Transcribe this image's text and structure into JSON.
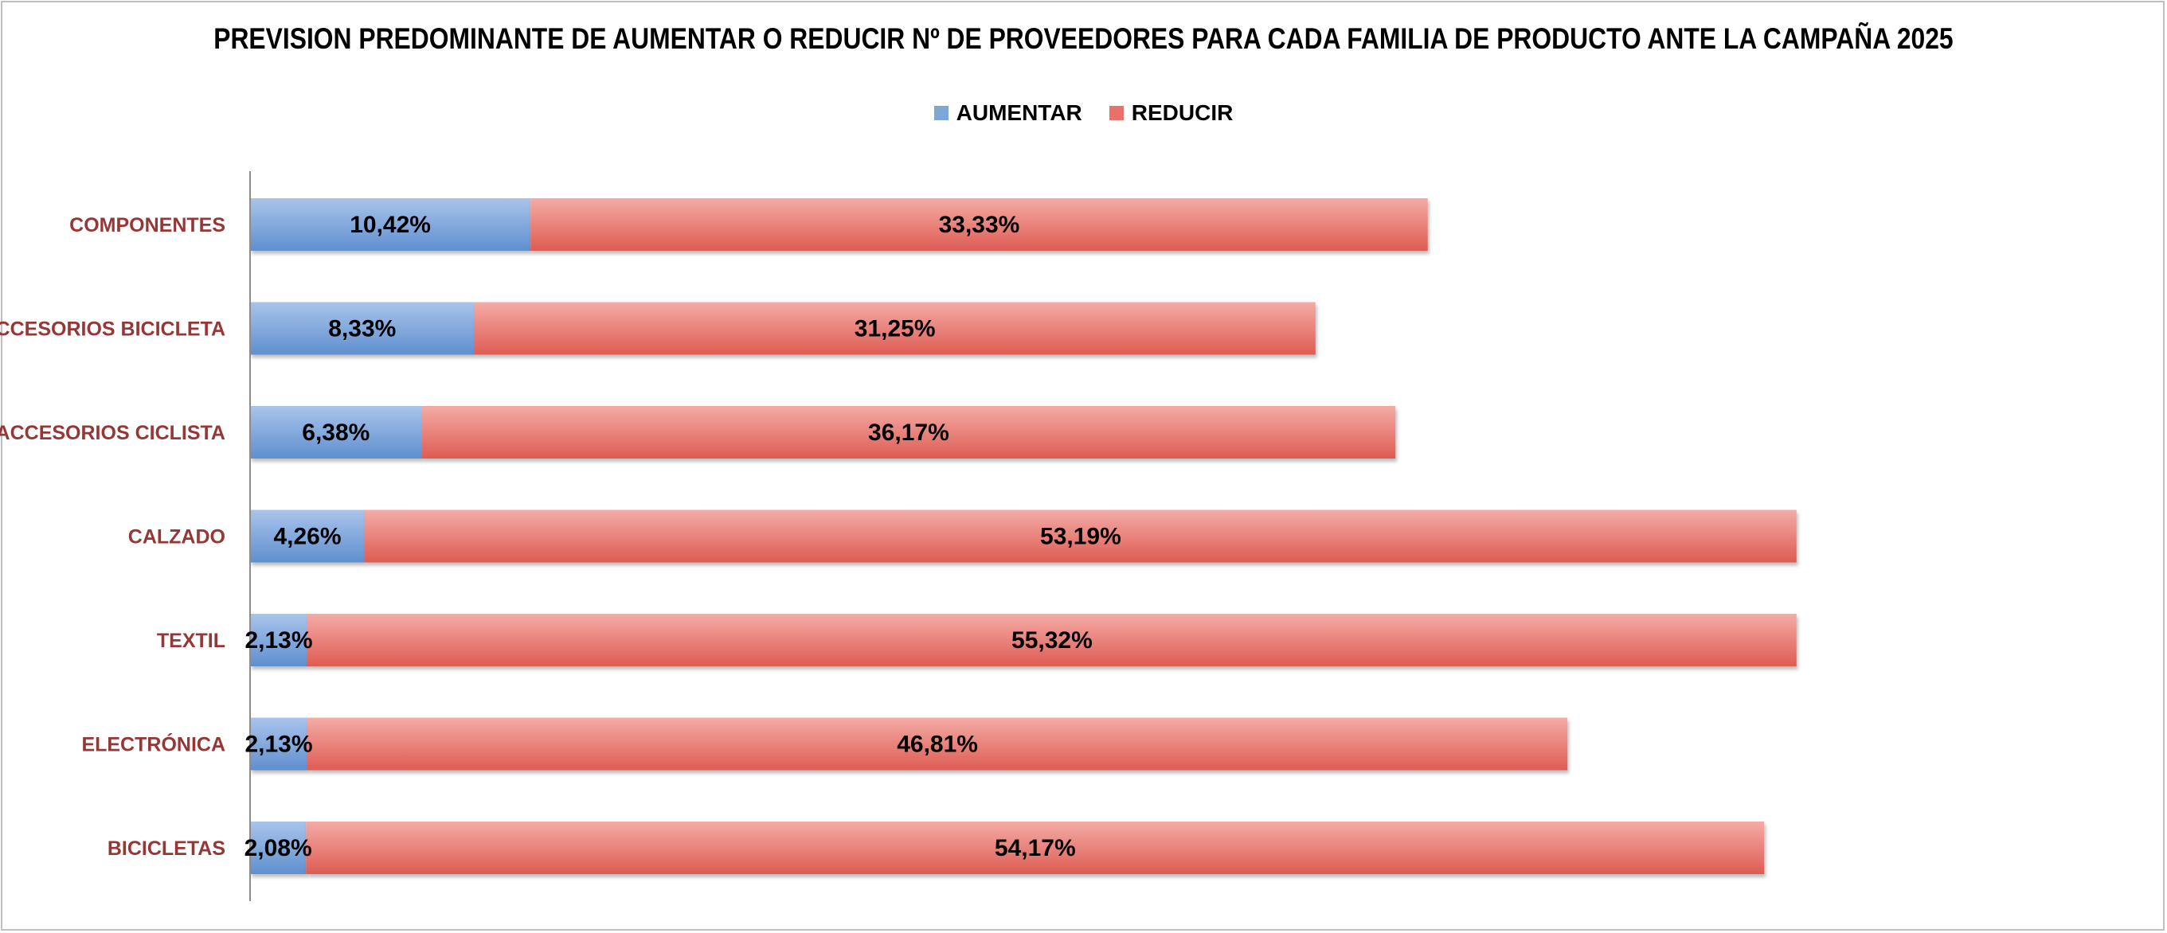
{
  "chart_data": {
    "type": "bar",
    "orientation": "horizontal",
    "stacked": true,
    "title": "PREVISION PREDOMINANTE DE AUMENTAR O REDUCIR Nº DE PROVEEDORES PARA CADA FAMILIA DE PRODUCTO ANTE LA CAMPAÑA 2025",
    "categories": [
      "COMPONENTES",
      "ACCESORIOS BICICLETA",
      "ACCESORIOS CICLISTA",
      "CALZADO",
      "TEXTIL",
      "ELECTRÓNICA",
      "BICICLETAS"
    ],
    "series": [
      {
        "name": "AUMENTAR",
        "color": "#7ea7d9",
        "values": [
          10.42,
          8.33,
          6.38,
          4.26,
          2.13,
          2.13,
          2.08
        ],
        "labels": [
          "10,42%",
          "8,33%",
          "6,38%",
          "4,26%",
          "2,13%",
          "2,13%",
          "2,08%"
        ]
      },
      {
        "name": "REDUCIR",
        "color": "#e8726a",
        "values": [
          33.33,
          31.25,
          36.17,
          53.19,
          55.32,
          46.81,
          54.17
        ],
        "labels": [
          "33,33%",
          "31,25%",
          "36,17%",
          "53,19%",
          "55,32%",
          "46,81%",
          "54,17%"
        ]
      }
    ],
    "xlim": [
      0,
      70
    ],
    "xlabel": "",
    "ylabel": "",
    "grid": false,
    "legend_position": "top"
  }
}
